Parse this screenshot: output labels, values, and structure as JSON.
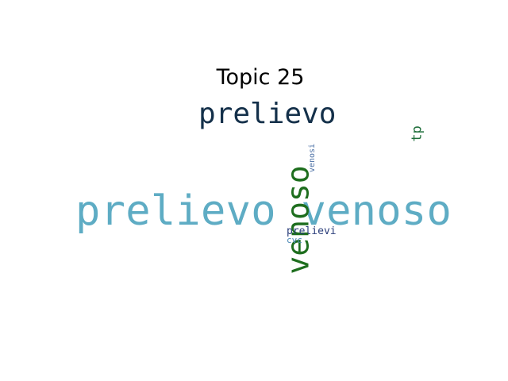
{
  "title": "Topic 25",
  "words": {
    "main": {
      "text": "prelievo venoso",
      "color": "#5eacc4"
    },
    "prelievo": {
      "text": "prelievo",
      "color": "#14304a"
    },
    "venoso": {
      "text": "venoso",
      "color": "#1e6e1e"
    },
    "tp": {
      "text": "tp",
      "color": "#1e6e3a"
    },
    "venosi": {
      "text": "venosi",
      "color": "#4a6fa5"
    },
    "prelievi": {
      "text": "prelievi",
      "color": "#2a3d7a"
    },
    "cvc": {
      "text": "cvc",
      "color": "#4a88b5"
    }
  }
}
